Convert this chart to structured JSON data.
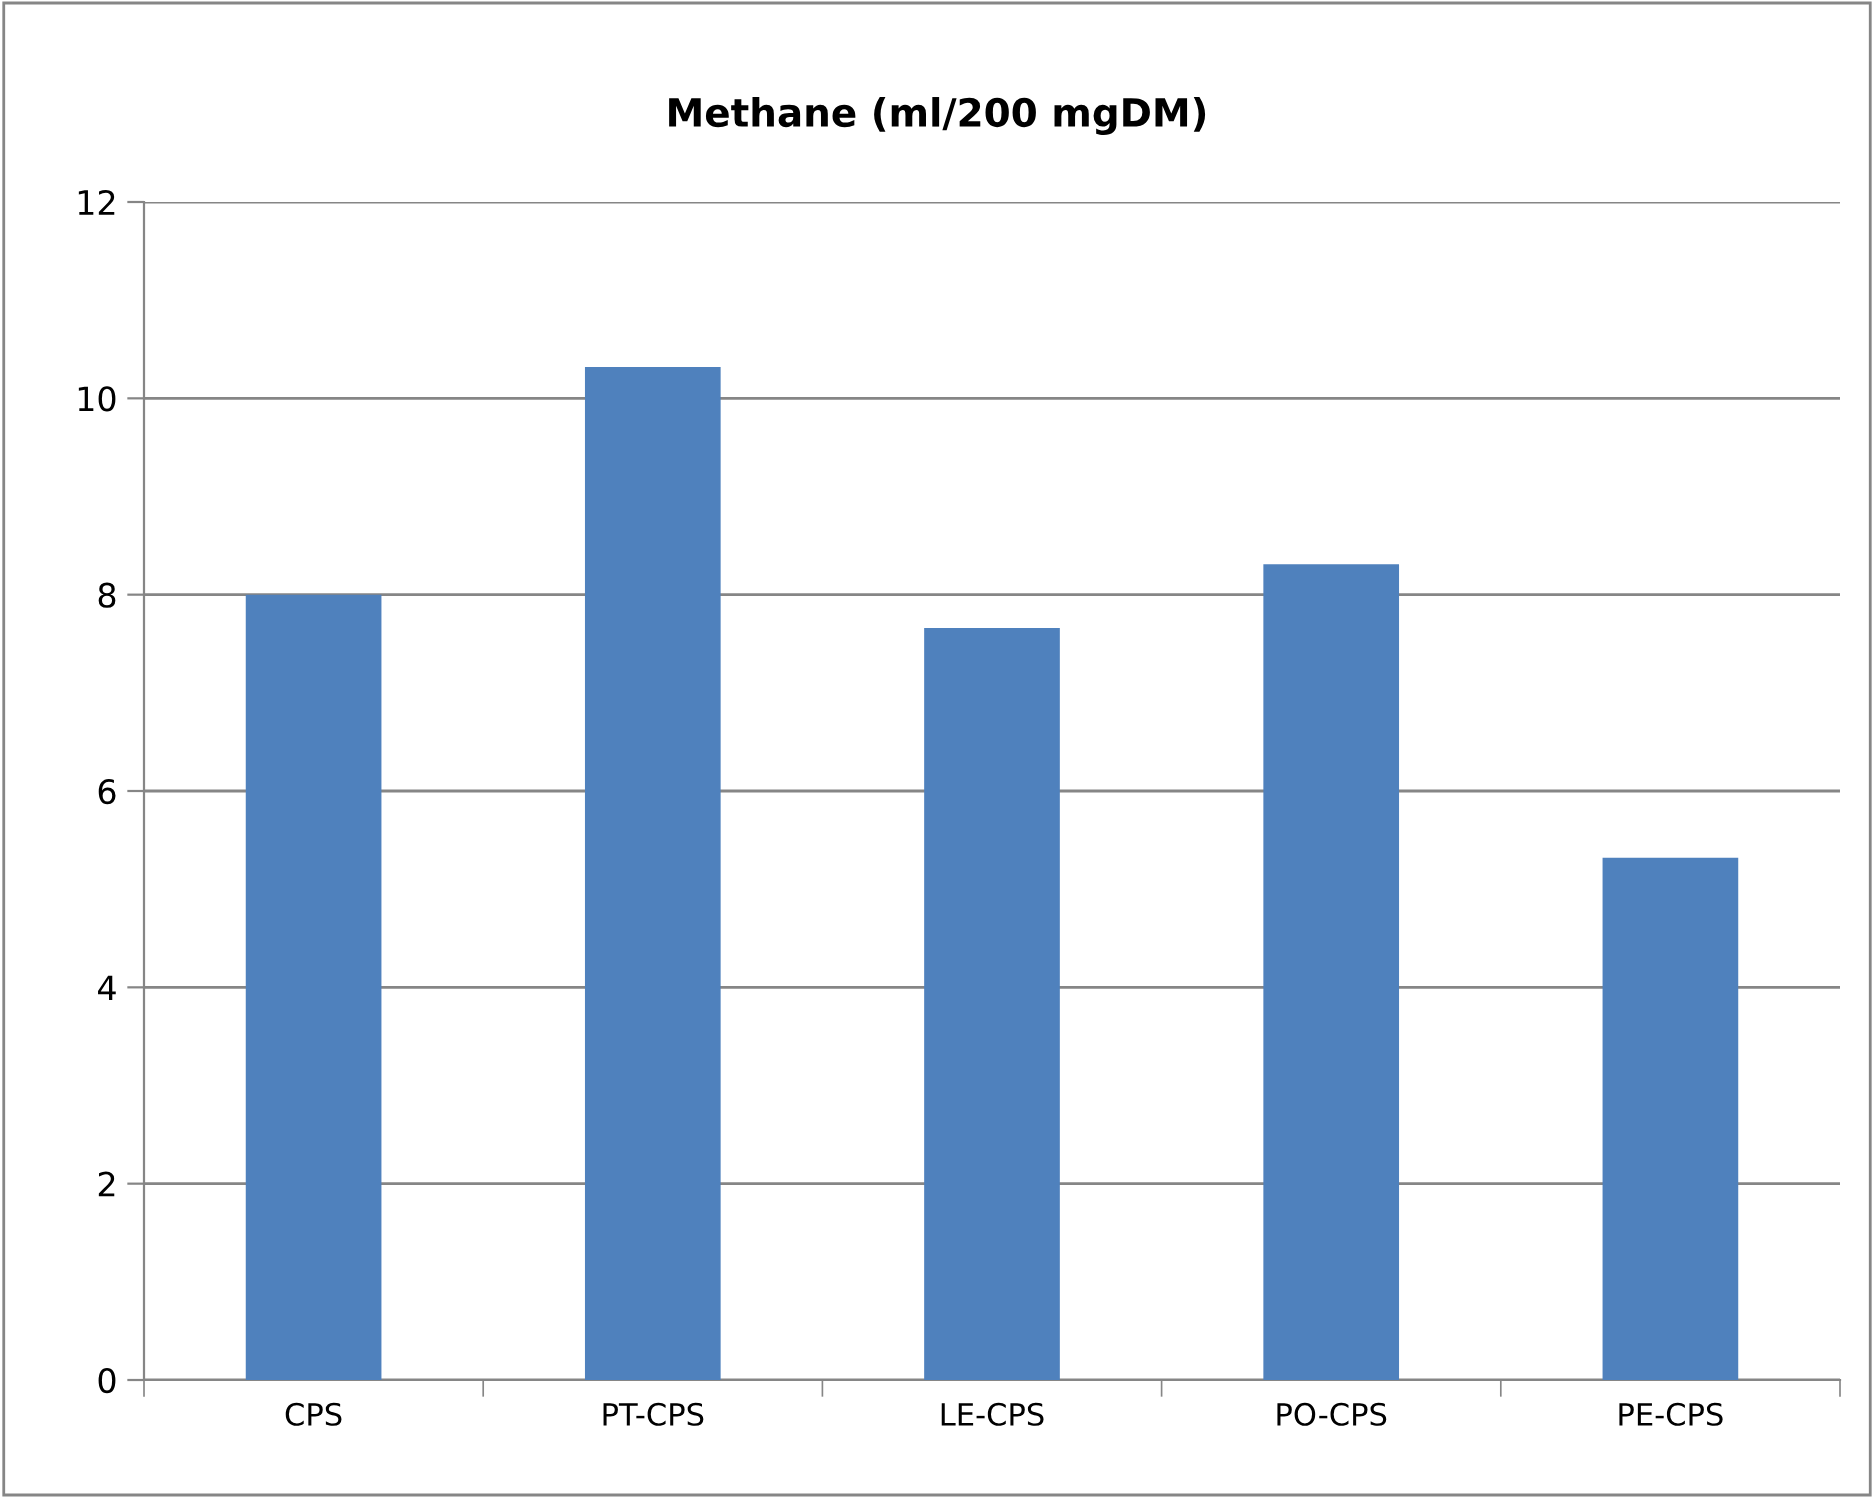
{
  "chart_data": {
    "type": "bar",
    "title": "Methane (ml/200 mgDM)",
    "categories": [
      "CPS",
      "PT-CPS",
      "LE-CPS",
      "PO-CPS",
      "PE-CPS"
    ],
    "values": [
      8.0,
      10.32,
      7.66,
      8.31,
      5.32
    ],
    "color": "#4f81bd",
    "ylim": [
      0,
      12
    ],
    "yticks": [
      0,
      2,
      4,
      6,
      8,
      10,
      12
    ],
    "grid": "y",
    "legend": false
  }
}
